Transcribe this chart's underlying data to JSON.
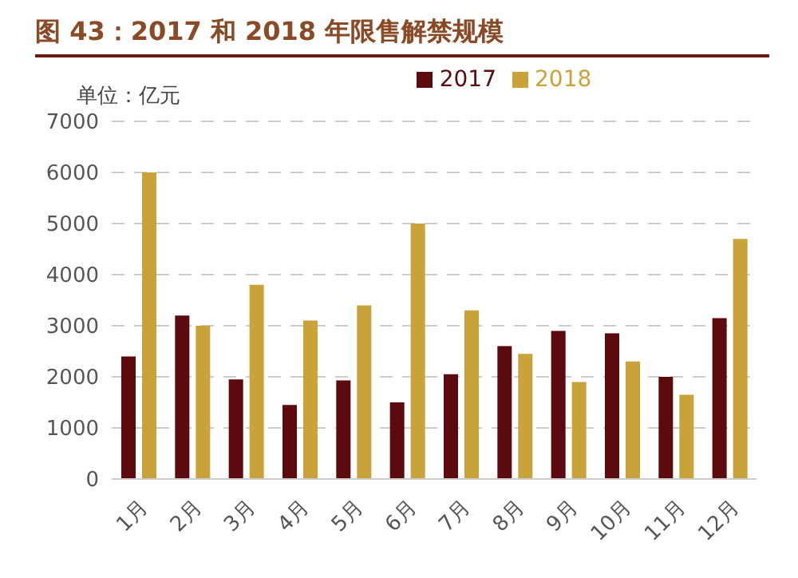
{
  "chart_data": {
    "type": "bar",
    "title": "图 43：2017 和 2018 年限售解禁规模",
    "ylabel": "单位：亿元",
    "categories": [
      "1月",
      "2月",
      "3月",
      "4月",
      "5月",
      "6月",
      "7月",
      "8月",
      "9月",
      "10月",
      "11月",
      "12月"
    ],
    "series": [
      {
        "name": "2017",
        "color": "#5c0a0e",
        "values": [
          2400,
          3200,
          1950,
          1450,
          1930,
          1500,
          2050,
          2600,
          2900,
          2850,
          2000,
          3150
        ]
      },
      {
        "name": "2018",
        "color": "#c9a23a",
        "values": [
          6000,
          3000,
          3800,
          3100,
          3400,
          5000,
          3300,
          2450,
          1900,
          2300,
          1650,
          4700
        ]
      }
    ],
    "ylim": [
      0,
      7000
    ],
    "yticks": [
      0,
      1000,
      2000,
      3000,
      4000,
      5000,
      6000,
      7000
    ],
    "grid": "y",
    "legend": "top"
  }
}
